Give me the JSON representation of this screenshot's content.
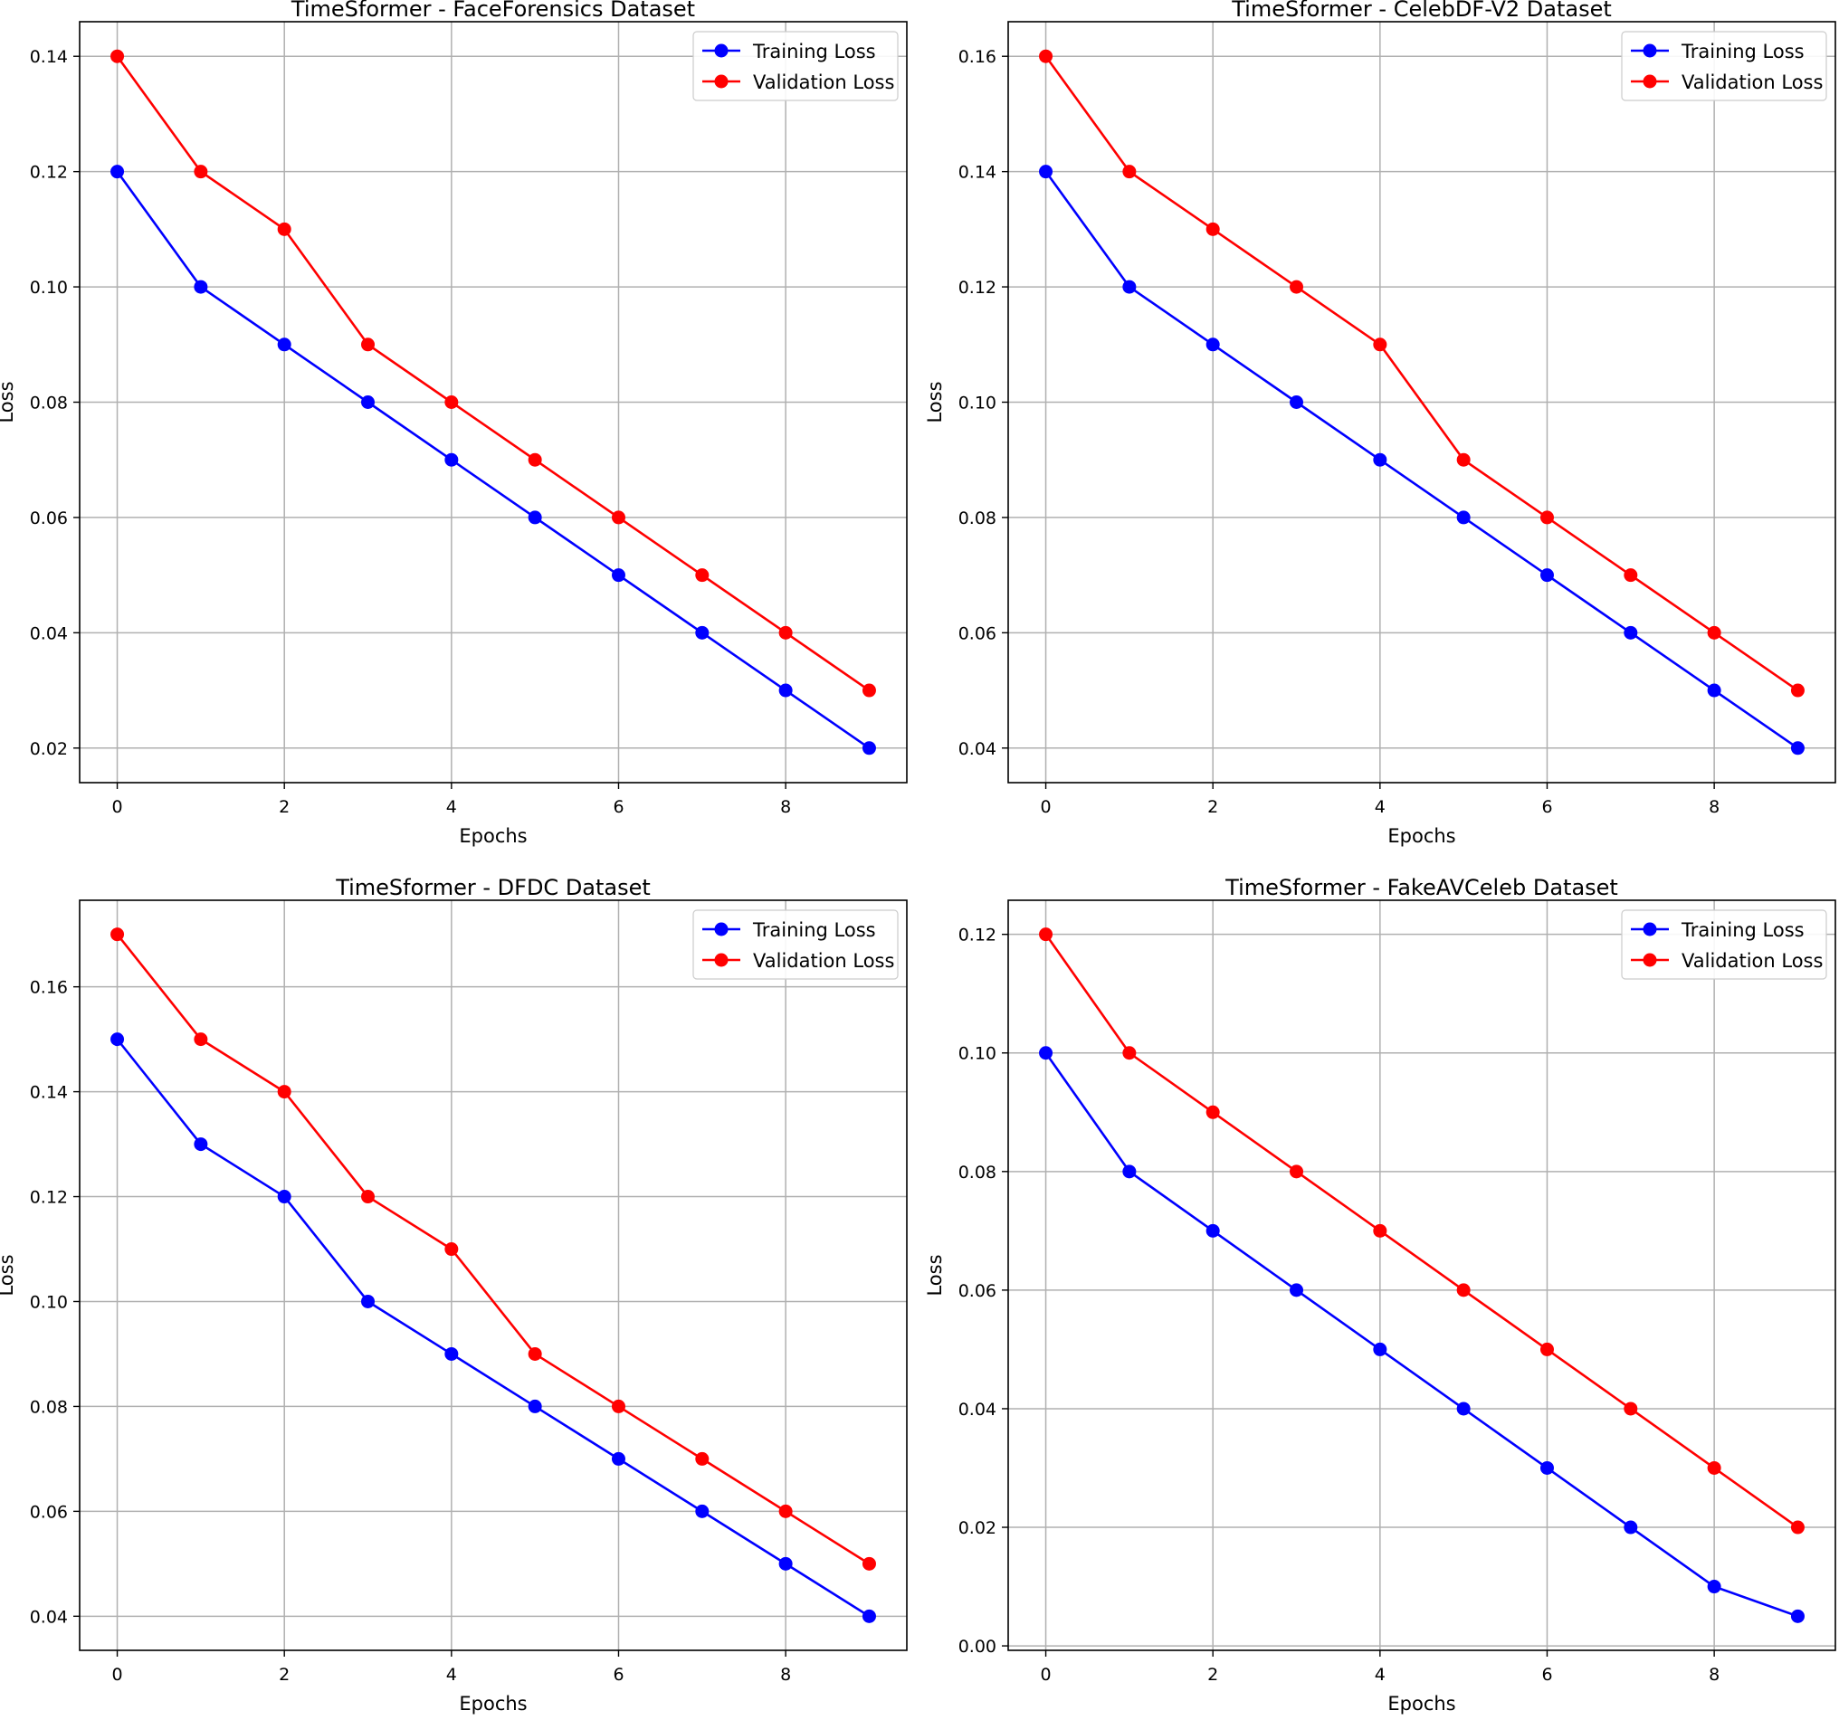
{
  "chart_data": [
    {
      "type": "line",
      "title": "TimeSformer - FaceForensics Dataset",
      "xlabel": "Epochs",
      "ylabel": "Loss",
      "x": [
        0,
        1,
        2,
        3,
        4,
        5,
        6,
        7,
        8,
        9
      ],
      "xlim": [
        -0.45,
        9.45
      ],
      "ylim": [
        0.014,
        0.146
      ],
      "xticks": [
        0,
        2,
        4,
        6,
        8
      ],
      "yticks": [
        0.02,
        0.04,
        0.06,
        0.08,
        0.1,
        0.12,
        0.14
      ],
      "ytick_labels": [
        "0.02",
        "0.04",
        "0.06",
        "0.08",
        "0.10",
        "0.12",
        "0.14"
      ],
      "grid": true,
      "legend_position": "top-right",
      "series": [
        {
          "name": "Training Loss",
          "color": "#0000ff",
          "values": [
            0.12,
            0.1,
            0.09,
            0.08,
            0.07,
            0.06,
            0.05,
            0.04,
            0.03,
            0.02
          ]
        },
        {
          "name": "Validation Loss",
          "color": "#ff0000",
          "values": [
            0.14,
            0.12,
            0.11,
            0.09,
            0.08,
            0.07,
            0.06,
            0.05,
            0.04,
            0.03
          ]
        }
      ]
    },
    {
      "type": "line",
      "title": "TimeSformer - CelebDF-V2 Dataset",
      "xlabel": "Epochs",
      "ylabel": "Loss",
      "x": [
        0,
        1,
        2,
        3,
        4,
        5,
        6,
        7,
        8,
        9
      ],
      "xlim": [
        -0.45,
        9.45
      ],
      "ylim": [
        0.034,
        0.166
      ],
      "xticks": [
        0,
        2,
        4,
        6,
        8
      ],
      "yticks": [
        0.04,
        0.06,
        0.08,
        0.1,
        0.12,
        0.14,
        0.16
      ],
      "ytick_labels": [
        "0.04",
        "0.06",
        "0.08",
        "0.10",
        "0.12",
        "0.14",
        "0.16"
      ],
      "grid": true,
      "legend_position": "top-right",
      "series": [
        {
          "name": "Training Loss",
          "color": "#0000ff",
          "values": [
            0.14,
            0.12,
            0.11,
            0.1,
            0.09,
            0.08,
            0.07,
            0.06,
            0.05,
            0.04
          ]
        },
        {
          "name": "Validation Loss",
          "color": "#ff0000",
          "values": [
            0.16,
            0.14,
            0.13,
            0.12,
            0.11,
            0.09,
            0.08,
            0.07,
            0.06,
            0.05
          ]
        }
      ]
    },
    {
      "type": "line",
      "title": "TimeSformer - DFDC Dataset",
      "xlabel": "Epochs",
      "ylabel": "Loss",
      "x": [
        0,
        1,
        2,
        3,
        4,
        5,
        6,
        7,
        8,
        9
      ],
      "xlim": [
        -0.45,
        9.45
      ],
      "ylim": [
        0.0335,
        0.1765
      ],
      "xticks": [
        0,
        2,
        4,
        6,
        8
      ],
      "yticks": [
        0.04,
        0.06,
        0.08,
        0.1,
        0.12,
        0.14,
        0.16
      ],
      "ytick_labels": [
        "0.04",
        "0.06",
        "0.08",
        "0.10",
        "0.12",
        "0.14",
        "0.16"
      ],
      "grid": true,
      "legend_position": "top-right",
      "series": [
        {
          "name": "Training Loss",
          "color": "#0000ff",
          "values": [
            0.15,
            0.13,
            0.12,
            0.1,
            0.09,
            0.08,
            0.07,
            0.06,
            0.05,
            0.04
          ]
        },
        {
          "name": "Validation Loss",
          "color": "#ff0000",
          "values": [
            0.17,
            0.15,
            0.14,
            0.12,
            0.11,
            0.09,
            0.08,
            0.07,
            0.06,
            0.05
          ]
        }
      ]
    },
    {
      "type": "line",
      "title": "TimeSformer - FakeAVCeleb Dataset",
      "xlabel": "Epochs",
      "ylabel": "Loss",
      "x": [
        0,
        1,
        2,
        3,
        4,
        5,
        6,
        7,
        8,
        9
      ],
      "xlim": [
        -0.45,
        9.45
      ],
      "ylim": [
        -0.00075,
        0.12575
      ],
      "xticks": [
        0,
        2,
        4,
        6,
        8
      ],
      "yticks": [
        0.0,
        0.02,
        0.04,
        0.06,
        0.08,
        0.1,
        0.12
      ],
      "ytick_labels": [
        "0.00",
        "0.02",
        "0.04",
        "0.06",
        "0.08",
        "0.10",
        "0.12"
      ],
      "grid": true,
      "legend_position": "top-right",
      "series": [
        {
          "name": "Training Loss",
          "color": "#0000ff",
          "values": [
            0.1,
            0.08,
            0.07,
            0.06,
            0.05,
            0.04,
            0.03,
            0.02,
            0.01,
            0.005
          ]
        },
        {
          "name": "Validation Loss",
          "color": "#ff0000",
          "values": [
            0.12,
            0.1,
            0.09,
            0.08,
            0.07,
            0.06,
            0.05,
            0.04,
            0.03,
            0.02
          ]
        }
      ]
    }
  ]
}
